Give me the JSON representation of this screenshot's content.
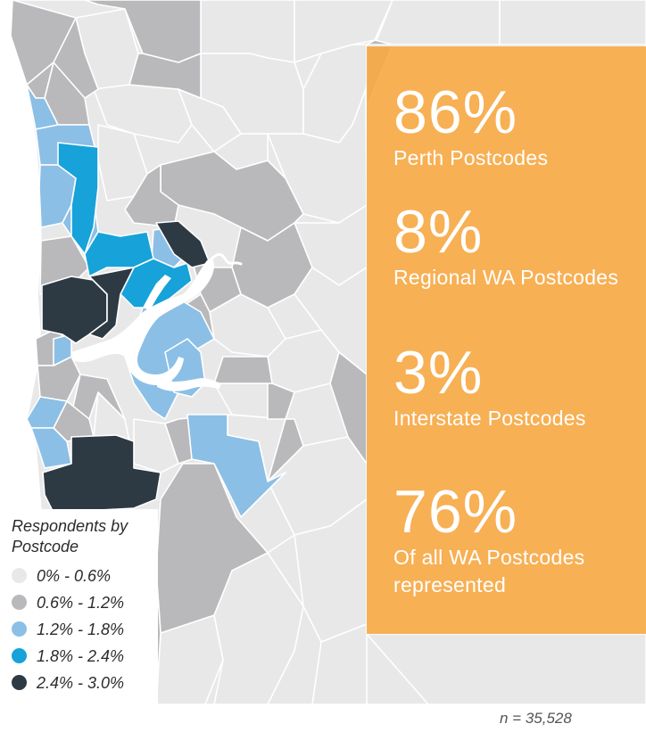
{
  "map": {
    "colors": {
      "sea": "#ffffff",
      "band_0": "#e8e8e8",
      "band_1": "#b9b9bb",
      "band_2": "#8bbfe6",
      "band_3": "#17a2d9",
      "band_4": "#2d3a44",
      "stats_panel": "#f8aa44"
    }
  },
  "stats": [
    {
      "value": "86%",
      "label": "Perth Postcodes"
    },
    {
      "value": "8%",
      "label": "Regional WA Postcodes"
    },
    {
      "value": "3%",
      "label": "Interstate Postcodes"
    },
    {
      "value": "76%",
      "label": "Of all WA Postcodes represented"
    }
  ],
  "legend": {
    "title": "Respondents by Postcode",
    "items": [
      {
        "label": "0% - 0.6%",
        "color": "#e8e8e8"
      },
      {
        "label": "0.6% - 1.2%",
        "color": "#b9b9bb"
      },
      {
        "label": "1.2% - 1.8%",
        "color": "#8bbfe6"
      },
      {
        "label": "1.8% - 2.4%",
        "color": "#17a2d9"
      },
      {
        "label": "2.4% - 3.0%",
        "color": "#2d3a44"
      }
    ]
  },
  "footer": {
    "sample_size": "n = 35,528"
  }
}
